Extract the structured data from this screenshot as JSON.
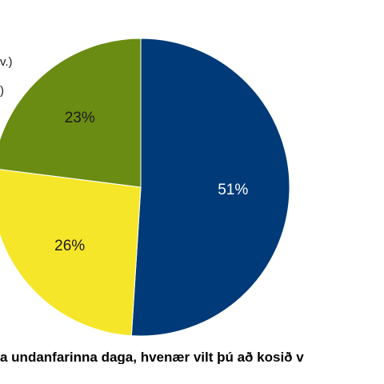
{
  "chart_data": {
    "type": "pie",
    "title": "",
    "categories": [
      "51%",
      "26%",
      "23%"
    ],
    "values": [
      51,
      26,
      23
    ],
    "slices": [
      {
        "value": 51,
        "label": "51%",
        "color": "#003a78",
        "label_color": "#ffffff"
      },
      {
        "value": 26,
        "label": "26%",
        "color": "#f5e629",
        "label_color": "#1a1a1a"
      },
      {
        "value": 23,
        "label": "23%",
        "color": "#6a8c12",
        "label_color": "#1a1a1a"
      }
    ],
    "start_angle_deg": 0,
    "direction": "clockwise",
    "legend_fragments": [
      "v.)",
      ")"
    ],
    "question": "a undanfarinna daga, hvenær vilt þú að kosið v"
  }
}
